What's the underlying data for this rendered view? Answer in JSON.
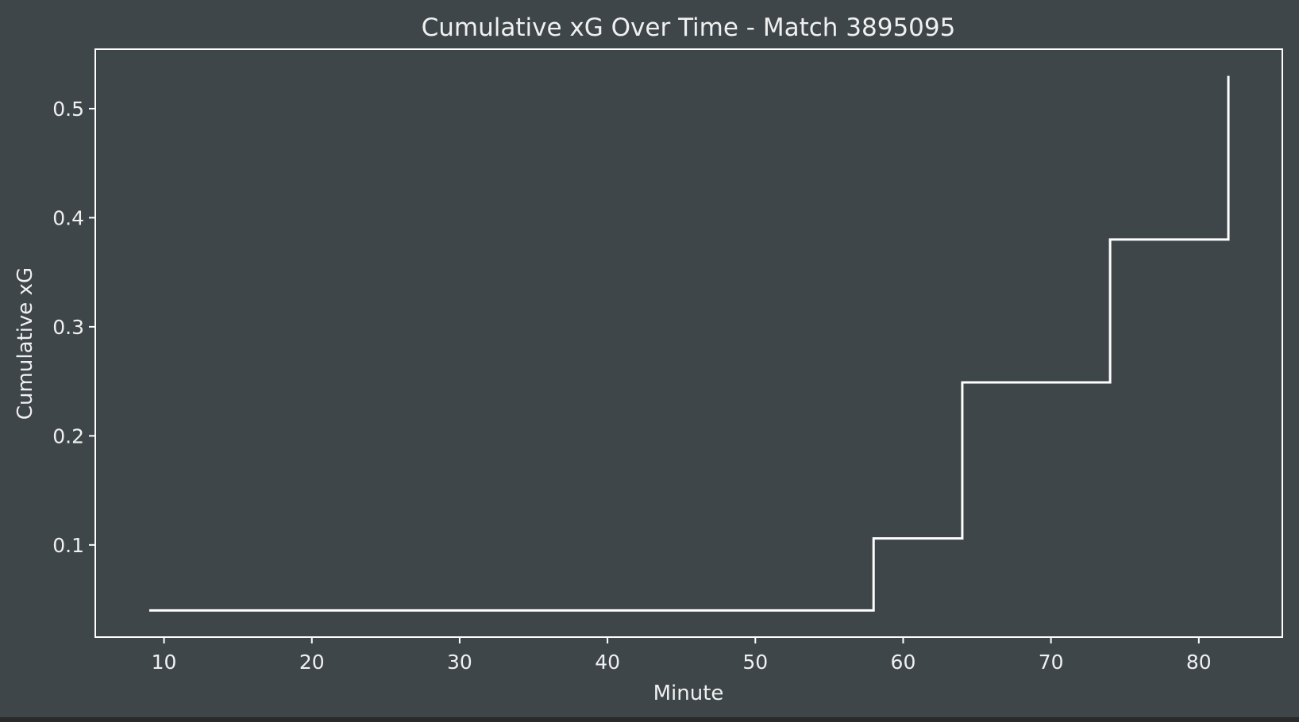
{
  "chart_data": {
    "type": "line",
    "drawstyle": "steps-post",
    "title": "Cumulative xG Over Time - Match 3895095",
    "xlabel": "Minute",
    "ylabel": "Cumulative xG",
    "x": [
      9,
      58,
      64,
      74,
      82
    ],
    "y": [
      0.04,
      0.106,
      0.249,
      0.38,
      0.53
    ],
    "xlim": [
      5.35,
      85.65
    ],
    "ylim": [
      0.0155,
      0.5545
    ],
    "xticks": [
      10,
      20,
      30,
      40,
      50,
      60,
      70,
      80
    ],
    "yticks": [
      0.1,
      0.2,
      0.3,
      0.4,
      0.5
    ],
    "grid": false,
    "colors": {
      "figure_background": "#3e4649",
      "axes_background": "#3e4649",
      "line": "#ffffff",
      "spines": "#ffffff",
      "text": "#f0f0f0"
    }
  }
}
